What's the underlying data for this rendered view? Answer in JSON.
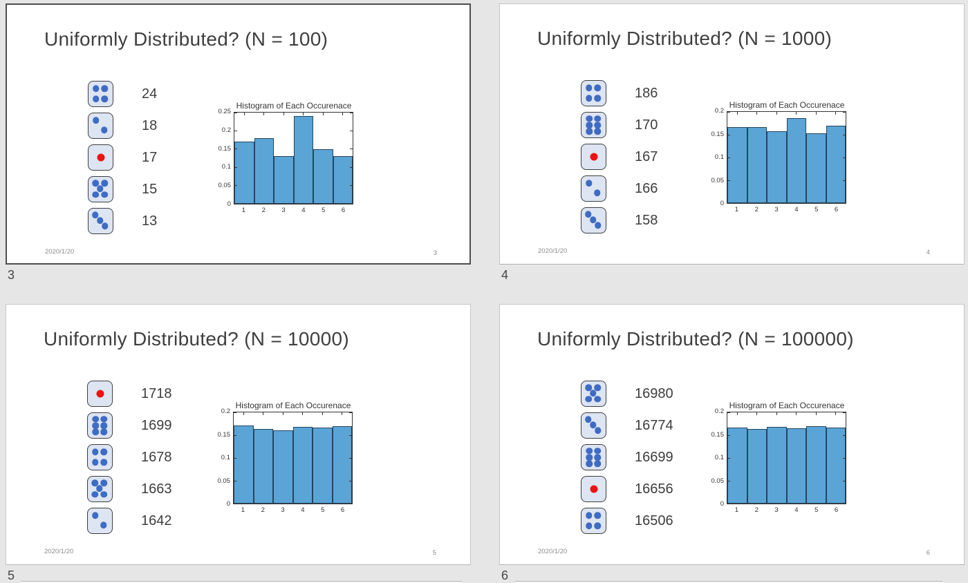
{
  "view": {
    "background": "#e7e6e6"
  },
  "colors": {
    "bar_fill": "#5ba4d6",
    "bar_edge": "#24455e",
    "die_fill": "#dde4f2",
    "die_border": "#3d3d3d",
    "dot_blue": "#3e6cc4",
    "dot_red": "#ee1111",
    "selected_border": "#4d4d4d",
    "slide_border": "#c6c6c6"
  },
  "slides": [
    {
      "label": "3",
      "page": "3",
      "date": "2020/1/20",
      "selected": true,
      "title": "Uniformly Distributed? (N = 100)",
      "dice": [
        {
          "face": 4,
          "count": "24"
        },
        {
          "face": 2,
          "count": "18"
        },
        {
          "face": 1,
          "count": "17"
        },
        {
          "face": 5,
          "count": "15"
        },
        {
          "face": 3,
          "count": "13"
        }
      ]
    },
    {
      "label": "4",
      "page": "4",
      "date": "2020/1/20",
      "selected": false,
      "title": "Uniformly Distributed? (N = 1000)",
      "dice": [
        {
          "face": 4,
          "count": "186"
        },
        {
          "face": 6,
          "count": "170"
        },
        {
          "face": 1,
          "count": "167"
        },
        {
          "face": 2,
          "count": "166"
        },
        {
          "face": 3,
          "count": "158"
        }
      ]
    },
    {
      "label": "5",
      "page": "5",
      "date": "2020/1/20",
      "selected": false,
      "title": "Uniformly Distributed? (N = 10000)",
      "dice": [
        {
          "face": 1,
          "count": "1718"
        },
        {
          "face": 6,
          "count": "1699"
        },
        {
          "face": 4,
          "count": "1678"
        },
        {
          "face": 5,
          "count": "1663"
        },
        {
          "face": 2,
          "count": "1642"
        }
      ]
    },
    {
      "label": "6",
      "page": "6",
      "date": "2020/1/20",
      "selected": false,
      "title": "Uniformly Distributed? (N = 100000)",
      "dice": [
        {
          "face": 5,
          "count": "16980"
        },
        {
          "face": 3,
          "count": "16774"
        },
        {
          "face": 6,
          "count": "16699"
        },
        {
          "face": 1,
          "count": "16656"
        },
        {
          "face": 4,
          "count": "16506"
        }
      ]
    }
  ],
  "chart_data": [
    {
      "type": "bar",
      "title": "Histogram of Each Occurenace",
      "xlabel": "",
      "ylabel": "",
      "categories": [
        "1",
        "2",
        "3",
        "4",
        "5",
        "6"
      ],
      "values": [
        0.17,
        0.18,
        0.13,
        0.24,
        0.15,
        0.13
      ],
      "ylim": [
        0,
        0.25
      ],
      "ytick_labels": [
        "0",
        "0.05",
        "0.1",
        "0.15",
        "0.2",
        "0.25"
      ],
      "grid": false,
      "legend": false
    },
    {
      "type": "bar",
      "title": "Histogram of Each Occurenace",
      "xlabel": "",
      "ylabel": "",
      "categories": [
        "1",
        "2",
        "3",
        "4",
        "5",
        "6"
      ],
      "values": [
        0.167,
        0.166,
        0.158,
        0.186,
        0.153,
        0.17
      ],
      "ylim": [
        0,
        0.2
      ],
      "ytick_labels": [
        "0",
        "0.05",
        "0.1",
        "0.15",
        "0.2"
      ],
      "grid": false,
      "legend": false
    },
    {
      "type": "bar",
      "title": "Histogram of Each Occurenace",
      "xlabel": "",
      "ylabel": "",
      "categories": [
        "1",
        "2",
        "3",
        "4",
        "5",
        "6"
      ],
      "values": [
        0.1718,
        0.1642,
        0.16,
        0.1678,
        0.1663,
        0.1699
      ],
      "ylim": [
        0,
        0.2
      ],
      "ytick_labels": [
        "0",
        "0.05",
        "0.1",
        "0.15",
        "0.2"
      ],
      "grid": false,
      "legend": false
    },
    {
      "type": "bar",
      "title": "Histogram of Each Occurenace",
      "xlabel": "",
      "ylabel": "",
      "categories": [
        "1",
        "2",
        "3",
        "4",
        "5",
        "6"
      ],
      "values": [
        0.1666,
        0.1639,
        0.1677,
        0.1651,
        0.1698,
        0.167
      ],
      "ylim": [
        0,
        0.2
      ],
      "ytick_labels": [
        "0",
        "0.05",
        "0.1",
        "0.15",
        "0.2"
      ],
      "grid": false,
      "legend": false
    }
  ]
}
